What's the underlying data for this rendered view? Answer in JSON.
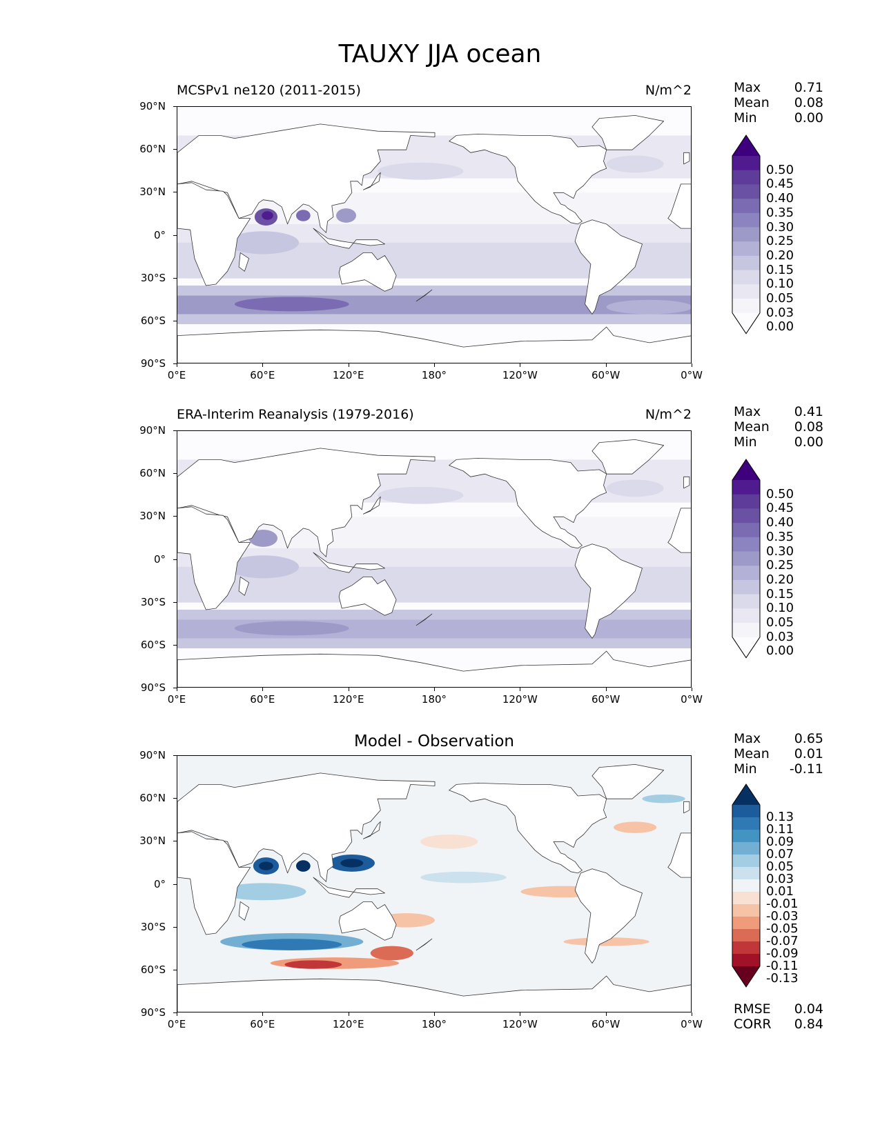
{
  "figure_title": "TAUXY JJA ocean",
  "axes": {
    "yticks": [
      "90°N",
      "60°N",
      "30°N",
      "0°",
      "30°S",
      "60°S",
      "90°S"
    ],
    "xticks": [
      "0°E",
      "60°E",
      "120°E",
      "180°",
      "120°W",
      "60°W",
      "0°W"
    ]
  },
  "panels": [
    {
      "title": "MCSPv1 ne120 (2011-2015)",
      "units": "N/m^2",
      "stats": [
        {
          "k": "Max",
          "v": "0.71"
        },
        {
          "k": "Mean",
          "v": "0.08"
        },
        {
          "k": "Min",
          "v": "0.00"
        }
      ],
      "colorbar": {
        "levels": [
          "0.50",
          "0.45",
          "0.40",
          "0.35",
          "0.30",
          "0.25",
          "0.20",
          "0.15",
          "0.10",
          "0.05",
          "0.03",
          "0.00"
        ],
        "colors": [
          "#3f007d",
          "#4f1b8f",
          "#5e3c99",
          "#6b51a3",
          "#7a6bb3",
          "#8b84c0",
          "#9e9ac8",
          "#b3b1d6",
          "#c6c6e1",
          "#dadaeb",
          "#e8e7f2",
          "#f5f4f9",
          "#fcfbfd"
        ]
      }
    },
    {
      "title": "ERA-Interim Reanalysis (1979-2016)",
      "units": "N/m^2",
      "stats": [
        {
          "k": "Max",
          "v": "0.41"
        },
        {
          "k": "Mean",
          "v": "0.08"
        },
        {
          "k": "Min",
          "v": "0.00"
        }
      ],
      "colorbar": {
        "levels": [
          "0.50",
          "0.45",
          "0.40",
          "0.35",
          "0.30",
          "0.25",
          "0.20",
          "0.15",
          "0.10",
          "0.05",
          "0.03",
          "0.00"
        ],
        "colors": [
          "#3f007d",
          "#4f1b8f",
          "#5e3c99",
          "#6b51a3",
          "#7a6bb3",
          "#8b84c0",
          "#9e9ac8",
          "#b3b1d6",
          "#c6c6e1",
          "#dadaeb",
          "#e8e7f2",
          "#f5f4f9",
          "#fcfbfd"
        ]
      }
    },
    {
      "title": "Model - Observation",
      "stats": [
        {
          "k": "Max",
          "v": "0.65"
        },
        {
          "k": "Mean",
          "v": "0.01"
        },
        {
          "k": "Min",
          "v": "-0.11"
        }
      ],
      "footer": [
        {
          "k": "RMSE",
          "v": "0.04"
        },
        {
          "k": "CORR",
          "v": "0.84"
        }
      ],
      "colorbar": {
        "levels": [
          "0.13",
          "0.11",
          "0.09",
          "0.07",
          "0.05",
          "0.03",
          "0.01",
          "-0.01",
          "-0.03",
          "-0.05",
          "-0.07",
          "-0.09",
          "-0.11",
          "-0.13"
        ],
        "colors": [
          "#053061",
          "#1c5c9c",
          "#2f79b5",
          "#4393c3",
          "#73aed3",
          "#a3cde3",
          "#cbe1ee",
          "#f1f4f6",
          "#f8e0d3",
          "#f7c3a7",
          "#f09c7b",
          "#db6b55",
          "#c13639",
          "#a11228",
          "#67001f"
        ]
      }
    }
  ]
}
